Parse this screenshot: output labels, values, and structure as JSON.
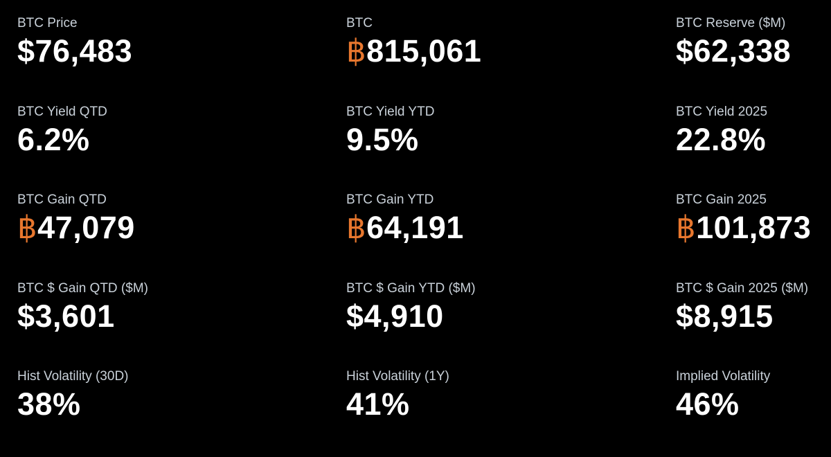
{
  "accent_color": "#e8772e",
  "btc_symbol": "฿",
  "metrics": [
    {
      "label": "BTC Price",
      "value": "$76,483",
      "btc": false
    },
    {
      "label": "BTC",
      "value": "815,061",
      "btc": true
    },
    {
      "label": "BTC Reserve ($M)",
      "value": "$62,338",
      "btc": false
    },
    {
      "label": "BTC Yield QTD",
      "value": "6.2%",
      "btc": false
    },
    {
      "label": "BTC Yield YTD",
      "value": "9.5%",
      "btc": false
    },
    {
      "label": "BTC Yield 2025",
      "value": "22.8%",
      "btc": false
    },
    {
      "label": "BTC Gain QTD",
      "value": "47,079",
      "btc": true
    },
    {
      "label": "BTC Gain YTD",
      "value": "64,191",
      "btc": true
    },
    {
      "label": "BTC Gain 2025",
      "value": "101,873",
      "btc": true
    },
    {
      "label": "BTC $ Gain QTD ($M)",
      "value": "$3,601",
      "btc": false
    },
    {
      "label": "BTC $ Gain YTD ($M)",
      "value": "$4,910",
      "btc": false
    },
    {
      "label": "BTC $ Gain 2025 ($M)",
      "value": "$8,915",
      "btc": false
    },
    {
      "label": "Hist Volatility (30D)",
      "value": "38%",
      "btc": false
    },
    {
      "label": "Hist Volatility (1Y)",
      "value": "41%",
      "btc": false
    },
    {
      "label": "Implied Volatility",
      "value": "46%",
      "btc": false
    }
  ]
}
